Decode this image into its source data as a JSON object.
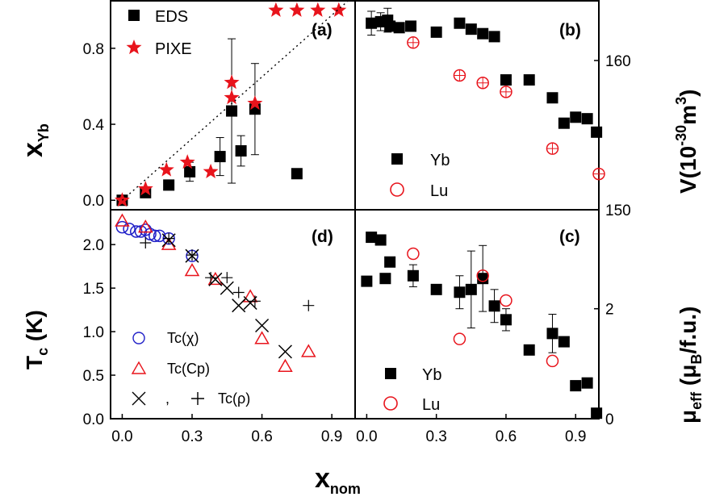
{
  "colors": {
    "red": "#e8141c",
    "blue": "#2020c8",
    "black": "#000000"
  },
  "labels": {
    "x_nom": "x",
    "x_nom_sub": "nom",
    "y_a": "x",
    "y_a_sub": "Yb",
    "y_d": "T",
    "y_d_sub": "c",
    "y_d_tail": " (K)",
    "y_b": "V(10",
    "y_b_sup": "-30",
    "y_b_mid": "m",
    "y_b_sup2": "3",
    "y_b_tail": ")",
    "y_c_mu": "μ",
    "y_c_sub": "eff",
    "y_c_open": " (μ",
    "y_c_sub2": "B",
    "y_c_tail": "/f.u.)"
  },
  "chart_data": [
    {
      "panel": "(a)",
      "type": "scatter",
      "xlim": [
        -0.05,
        1.0
      ],
      "ylim": [
        -0.05,
        1.05
      ],
      "yticks": [
        "0.0",
        "0.4",
        "0.8"
      ],
      "legend": [
        "EDS",
        "PIXE"
      ],
      "series": [
        {
          "name": "EDS",
          "marker": "square",
          "color": "#000000",
          "points": [
            [
              0.0,
              0.0
            ],
            [
              0.1,
              0.04
            ],
            [
              0.2,
              0.08
            ],
            [
              0.29,
              0.15
            ],
            [
              0.42,
              0.23
            ],
            [
              0.47,
              0.47
            ],
            [
              0.51,
              0.26
            ],
            [
              0.57,
              0.48
            ],
            [
              0.75,
              0.14
            ]
          ],
          "err": [
            0,
            0.02,
            0.02,
            0.05,
            0.1,
            0.38,
            0.08,
            0.24,
            0
          ]
        },
        {
          "name": "PIXE",
          "marker": "star",
          "color": "#e8141c",
          "points": [
            [
              0.0,
              0.0
            ],
            [
              0.1,
              0.06
            ],
            [
              0.19,
              0.16
            ],
            [
              0.28,
              0.2
            ],
            [
              0.38,
              0.15
            ],
            [
              0.47,
              0.54
            ],
            [
              0.47,
              0.62
            ],
            [
              0.57,
              0.51
            ],
            [
              0.66,
              1.0
            ],
            [
              0.75,
              1.0
            ],
            [
              0.84,
              1.0
            ],
            [
              0.93,
              1.0
            ]
          ]
        },
        {
          "name": "",
          "marker": "dotted-line",
          "color": "#000000",
          "points": [
            [
              0.0,
              0.0
            ],
            [
              0.97,
              1.05
            ]
          ]
        }
      ]
    },
    {
      "panel": "(b)",
      "type": "scatter",
      "xlim": [
        -0.05,
        1.0
      ],
      "ylim": [
        150,
        164
      ],
      "yticks": [
        "150",
        "160"
      ],
      "legend": [
        "Yb",
        "Lu"
      ],
      "series": [
        {
          "name": "Yb",
          "marker": "square",
          "color": "#000000",
          "points": [
            [
              0.02,
              162.5
            ],
            [
              0.06,
              162.6
            ],
            [
              0.09,
              162.7
            ],
            [
              0.1,
              162.3
            ],
            [
              0.14,
              162.2
            ],
            [
              0.19,
              162.3
            ],
            [
              0.3,
              161.9
            ],
            [
              0.4,
              162.5
            ],
            [
              0.45,
              162.1
            ],
            [
              0.5,
              161.8
            ],
            [
              0.55,
              161.6
            ],
            [
              0.6,
              158.7
            ],
            [
              0.7,
              158.7
            ],
            [
              0.8,
              157.5
            ],
            [
              0.85,
              155.8
            ],
            [
              0.9,
              156.2
            ],
            [
              0.95,
              156.1
            ],
            [
              0.99,
              155.2
            ]
          ],
          "err": [
            0.8,
            0.6,
            0.8,
            0,
            0,
            0,
            0,
            0,
            0,
            0,
            0,
            0,
            0,
            0,
            0,
            0,
            0,
            0
          ]
        },
        {
          "name": "Lu",
          "marker": "circle-open",
          "color": "#e8141c",
          "points": [
            [
              0.2,
              161.2
            ],
            [
              0.4,
              159.0
            ],
            [
              0.5,
              158.5
            ],
            [
              0.6,
              157.9
            ],
            [
              0.8,
              154.1
            ],
            [
              1.0,
              152.4
            ]
          ]
        }
      ]
    },
    {
      "panel": "(d)",
      "type": "scatter",
      "xlim": [
        -0.05,
        1.0
      ],
      "ylim": [
        0.0,
        2.4
      ],
      "xticks": [
        "0.0",
        "0.3",
        "0.6",
        "0.9"
      ],
      "yticks": [
        "0.0",
        "0.5",
        "1.0",
        "1.5",
        "2.0"
      ],
      "legend": [
        "Tc(χ)",
        "Tc(Cp)",
        "Tc(ρ)"
      ],
      "series": [
        {
          "name": "Tc(χ)",
          "marker": "circle-open",
          "color": "#2020c8",
          "points": [
            [
              0.0,
              2.2
            ],
            [
              0.03,
              2.18
            ],
            [
              0.06,
              2.15
            ],
            [
              0.08,
              2.15
            ],
            [
              0.1,
              2.17
            ],
            [
              0.12,
              2.12
            ],
            [
              0.14,
              2.1
            ],
            [
              0.16,
              2.1
            ],
            [
              0.2,
              2.07
            ],
            [
              0.3,
              1.87
            ]
          ]
        },
        {
          "name": "Tc(Cp)",
          "marker": "triangle-open",
          "color": "#e8141c",
          "points": [
            [
              0.0,
              2.27
            ],
            [
              0.1,
              2.2
            ],
            [
              0.2,
              2.0
            ],
            [
              0.3,
              1.7
            ],
            [
              0.4,
              1.6
            ],
            [
              0.55,
              1.4
            ],
            [
              0.6,
              0.92
            ],
            [
              0.7,
              0.6
            ],
            [
              0.8,
              0.77
            ]
          ]
        },
        {
          "name": "",
          "marker": "x",
          "color": "#000000",
          "points": [
            [
              0.2,
              2.05
            ],
            [
              0.3,
              1.87
            ],
            [
              0.4,
              1.6
            ],
            [
              0.45,
              1.5
            ],
            [
              0.5,
              1.3
            ],
            [
              0.55,
              1.33
            ],
            [
              0.6,
              1.07
            ],
            [
              0.7,
              0.77
            ]
          ]
        },
        {
          "name": "Tc(ρ)",
          "marker": "plus",
          "color": "#000000",
          "points": [
            [
              0.1,
              2.02
            ],
            [
              0.2,
              2.07
            ],
            [
              0.3,
              1.88
            ],
            [
              0.38,
              1.62
            ],
            [
              0.45,
              1.62
            ],
            [
              0.5,
              1.45
            ],
            [
              0.57,
              1.35
            ],
            [
              0.8,
              1.3
            ]
          ]
        }
      ]
    },
    {
      "panel": "(c)",
      "type": "scatter",
      "xlim": [
        -0.05,
        1.0
      ],
      "ylim": [
        0.0,
        3.8
      ],
      "xticks": [
        "0.0",
        "0.3",
        "0.6",
        "0.9"
      ],
      "yticks": [
        "0",
        "2"
      ],
      "legend": [
        "Yb",
        "Lu"
      ],
      "series": [
        {
          "name": "Yb",
          "marker": "square",
          "color": "#000000",
          "points": [
            [
              0.0,
              2.5
            ],
            [
              0.02,
              3.3
            ],
            [
              0.06,
              3.25
            ],
            [
              0.08,
              2.55
            ],
            [
              0.1,
              2.85
            ],
            [
              0.2,
              2.6
            ],
            [
              0.3,
              2.35
            ],
            [
              0.4,
              2.3
            ],
            [
              0.45,
              2.35
            ],
            [
              0.5,
              2.55
            ],
            [
              0.55,
              2.05
            ],
            [
              0.6,
              1.8
            ],
            [
              0.7,
              1.25
            ],
            [
              0.8,
              1.55
            ],
            [
              0.85,
              1.4
            ],
            [
              0.9,
              0.6
            ],
            [
              0.95,
              0.65
            ],
            [
              0.99,
              0.1
            ]
          ],
          "err": [
            0,
            0,
            0,
            0,
            0,
            0.2,
            0,
            0.3,
            0.7,
            0.6,
            0.3,
            0.2,
            0,
            0.35,
            0,
            0,
            0,
            0
          ]
        },
        {
          "name": "Lu",
          "marker": "circle-open",
          "color": "#e8141c",
          "points": [
            [
              0.2,
              3.0
            ],
            [
              0.4,
              1.45
            ],
            [
              0.5,
              2.6
            ],
            [
              0.6,
              2.15
            ],
            [
              0.8,
              1.05
            ]
          ]
        }
      ]
    }
  ]
}
